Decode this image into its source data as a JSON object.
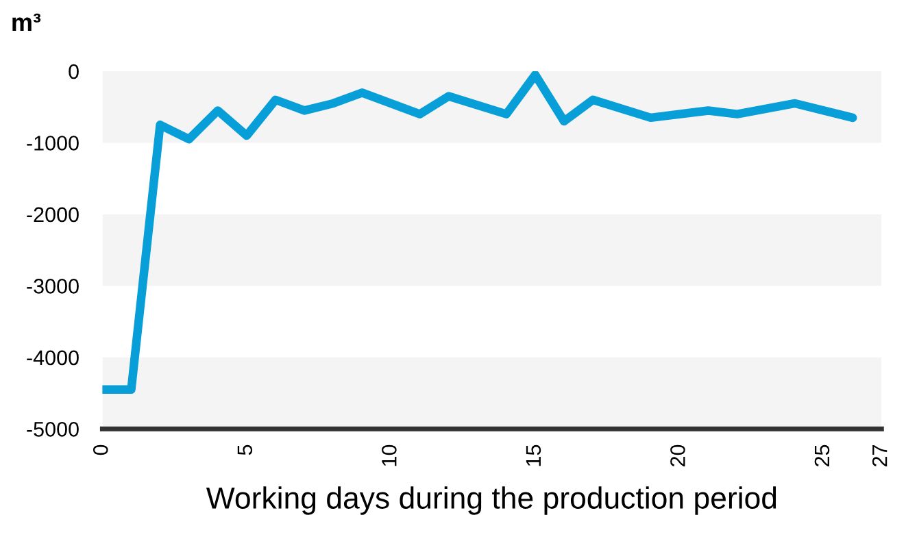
{
  "chart_data": {
    "type": "line",
    "ylabel": "m³",
    "xlabel": "Working days during the production period",
    "x": [
      0,
      1,
      2,
      3,
      4,
      5,
      6,
      7,
      8,
      9,
      11,
      12,
      14,
      15,
      16,
      17,
      19,
      21,
      22,
      24,
      26
    ],
    "series": [
      {
        "color": "#089fd9",
        "values": [
          -4450,
          -4450,
          -750,
          -950,
          -550,
          -900,
          -400,
          -550,
          -450,
          -300,
          -600,
          -350,
          -600,
          -50,
          -700,
          -400,
          -650,
          -550,
          -600,
          -450,
          -650
        ]
      }
    ],
    "xlim": [
      0,
      27
    ],
    "xticks": [
      0,
      5,
      10,
      15,
      20,
      25,
      27
    ],
    "ylim": [
      -5000,
      0
    ],
    "yticks": [
      0,
      -1000,
      -2000,
      -3000,
      -4000,
      -5000
    ],
    "bands": [
      {
        "axis": "y",
        "from": -1000,
        "to": 0,
        "color": "#f4f4f4"
      },
      {
        "axis": "y",
        "from": -3000,
        "to": -2000,
        "color": "#f4f4f4"
      },
      {
        "axis": "y",
        "from": -5000,
        "to": -4000,
        "color": "#f4f4f4"
      }
    ],
    "marker": "none",
    "line_style": "solid",
    "legend": false
  }
}
